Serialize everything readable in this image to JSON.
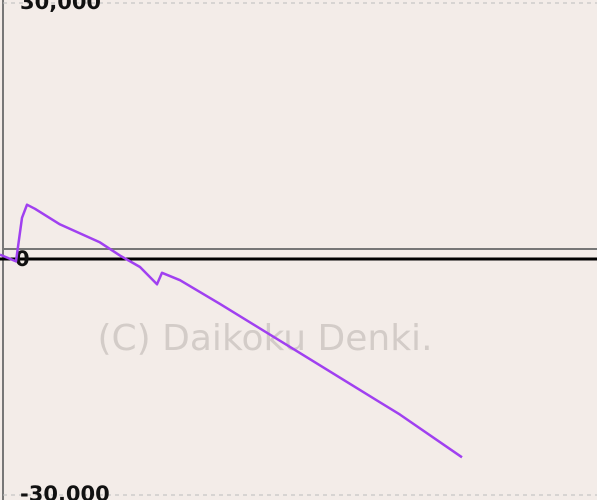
{
  "chart_data": {
    "type": "line",
    "watermark": "(C) Daikoku Denki.",
    "x": [
      0,
      16,
      22,
      27,
      35,
      60,
      100,
      120,
      140,
      157,
      162,
      180,
      220,
      300,
      400,
      462
    ],
    "series": [
      {
        "color": "#a040f0",
        "values": [
          -700,
          -1500,
          3800,
          5400,
          4900,
          3000,
          800,
          -800,
          -2200,
          -4300,
          -2900,
          -3800,
          -6700,
          -12700,
          -20200,
          -25400
        ]
      }
    ],
    "xlim": [
      0,
      597
    ],
    "ylim": [
      -30000,
      30000
    ],
    "yticks": [
      {
        "value": 30000,
        "label": "30,000"
      },
      {
        "value": 0,
        "label": "0"
      },
      {
        "value": -30000,
        "label": "-30,000"
      }
    ],
    "grid": true
  }
}
